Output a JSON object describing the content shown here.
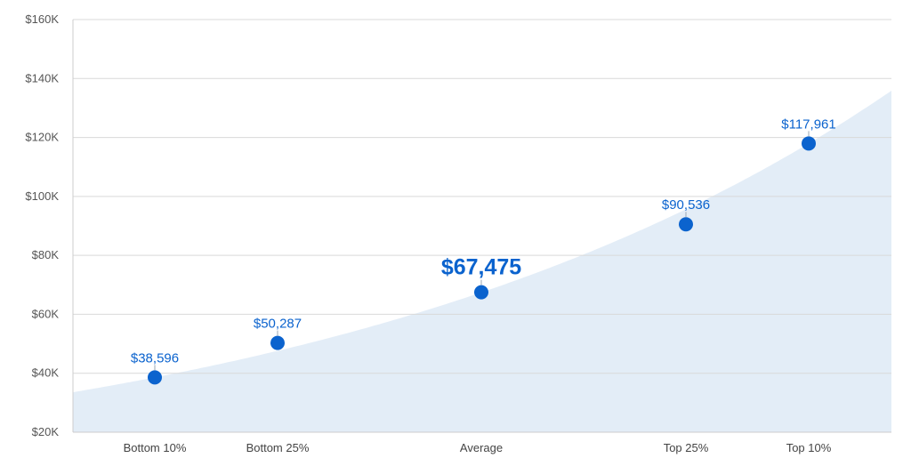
{
  "chart_data": {
    "type": "scatter",
    "categories": [
      "Bottom 10%",
      "Bottom 25%",
      "Average",
      "Top 25%",
      "Top 10%"
    ],
    "values": [
      38596,
      50287,
      67475,
      90536,
      117961
    ],
    "data_labels": [
      "$38,596",
      "$50,287",
      "$67,475",
      "$90,536",
      "$117,961"
    ],
    "highlight_category": "Average",
    "ylim": [
      20000,
      160000
    ],
    "yticks": [
      20000,
      40000,
      60000,
      80000,
      100000,
      120000,
      140000,
      160000
    ],
    "ytick_labels": [
      "$20K",
      "$40K",
      "$60K",
      "$80K",
      "$100K",
      "$120K",
      "$140K",
      "$160K"
    ],
    "grid": true,
    "background_area": "light blue shaded curve rising from lower-left to upper-right",
    "colors": {
      "point": "#0b63ce",
      "label": "#0b63ce",
      "area": "#e3edf7",
      "grid": "#d9d9d9"
    }
  }
}
